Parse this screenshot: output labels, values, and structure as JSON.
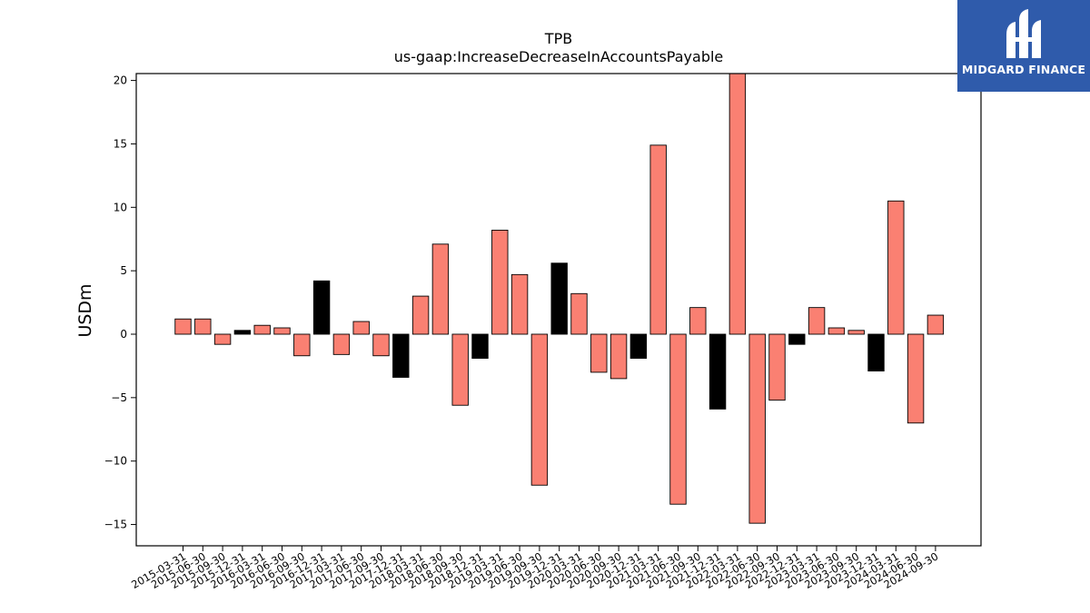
{
  "chart_data": {
    "type": "bar",
    "title": "TPB",
    "subtitle": "us-gaap:IncreaseDecreaseInAccountsPayable",
    "xlabel": "",
    "ylabel": "USDm",
    "ylim": [
      -16.5,
      20.5
    ],
    "yticks": [
      -15,
      -10,
      -5,
      0,
      5,
      10,
      15,
      20
    ],
    "ytick_labels": [
      "−15",
      "−10",
      "−5",
      "0",
      "5",
      "10",
      "15",
      "20"
    ],
    "grid": false,
    "categories": [
      "2015-03-31",
      "2015-06-30",
      "2015-09-30",
      "2015-12-31",
      "2016-03-31",
      "2016-06-30",
      "2016-09-30",
      "2016-12-31",
      "2017-03-31",
      "2017-06-30",
      "2017-09-30",
      "2017-12-31",
      "2018-03-31",
      "2018-06-30",
      "2018-09-30",
      "2018-12-31",
      "2019-03-31",
      "2019-06-30",
      "2019-09-30",
      "2019-12-31",
      "2020-03-31",
      "2020-06-30",
      "2020-09-30",
      "2020-12-31",
      "2021-03-31",
      "2021-06-30",
      "2021-09-30",
      "2021-12-31",
      "2022-03-31",
      "2022-06-30",
      "2022-09-30",
      "2022-12-31",
      "2023-03-31",
      "2023-06-30",
      "2023-09-30",
      "2023-12-31",
      "2024-03-31",
      "2024-06-30",
      "2024-09-30"
    ],
    "values": [
      1.2,
      1.2,
      -0.8,
      0.3,
      0.7,
      0.5,
      -1.7,
      4.2,
      -1.6,
      1.0,
      -1.7,
      -3.4,
      3.0,
      7.1,
      -5.6,
      -1.9,
      8.2,
      4.7,
      -11.9,
      5.6,
      3.2,
      -3.0,
      -3.5,
      -1.9,
      14.9,
      -13.4,
      2.1,
      -5.9,
      21.0,
      -14.9,
      -5.2,
      -0.8,
      2.1,
      0.5,
      0.3,
      -2.9,
      10.5,
      -7.0,
      1.5
    ],
    "bar_colors": [
      "#fa8072",
      "#fa8072",
      "#fa8072",
      "#000000",
      "#fa8072",
      "#fa8072",
      "#fa8072",
      "#000000",
      "#fa8072",
      "#fa8072",
      "#fa8072",
      "#000000",
      "#fa8072",
      "#fa8072",
      "#fa8072",
      "#000000",
      "#fa8072",
      "#fa8072",
      "#fa8072",
      "#000000",
      "#fa8072",
      "#fa8072",
      "#fa8072",
      "#000000",
      "#fa8072",
      "#fa8072",
      "#fa8072",
      "#000000",
      "#fa8072",
      "#fa8072",
      "#fa8072",
      "#000000",
      "#fa8072",
      "#fa8072",
      "#fa8072",
      "#000000",
      "#fa8072",
      "#fa8072",
      "#fa8072"
    ]
  },
  "logo": {
    "text": "MIDGARD FINANCE",
    "icon": "midgard-logo-icon",
    "background": "#2f5bab"
  }
}
